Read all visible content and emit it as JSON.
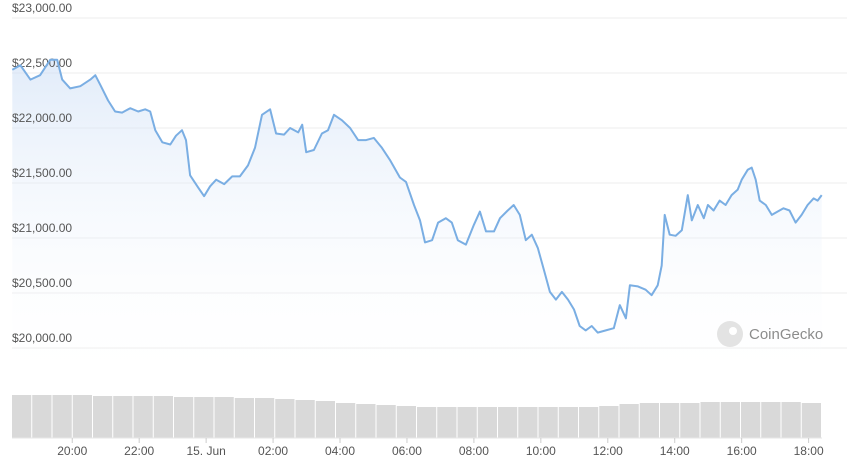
{
  "chart_data": {
    "type": "line",
    "watermark": "CoinGecko",
    "color": "#7aaee3",
    "grid": true,
    "x": [
      18.21,
      18.45,
      18.75,
      19.04,
      19.34,
      19.55,
      19.7,
      19.94,
      20.24,
      20.54,
      20.69,
      20.84,
      21.07,
      21.28,
      21.49,
      21.73,
      21.97,
      22.18,
      22.33,
      22.48,
      22.69,
      22.93,
      23.1,
      23.28,
      23.4,
      23.52,
      23.76,
      23.94,
      24.12,
      24.3,
      24.54,
      24.78,
      25.01,
      25.25,
      25.46,
      25.67,
      25.91,
      26.09,
      26.33,
      26.51,
      26.75,
      26.87,
      26.99,
      27.22,
      27.46,
      27.64,
      27.82,
      28.06,
      28.3,
      28.54,
      28.78,
      29.01,
      29.25,
      29.49,
      29.79,
      29.97,
      30.21,
      30.39,
      30.54,
      30.75,
      30.93,
      31.16,
      31.34,
      31.52,
      31.76,
      32.0,
      32.18,
      32.36,
      32.6,
      32.78,
      33.01,
      33.19,
      33.37,
      33.55,
      33.73,
      33.91,
      34.09,
      34.27,
      34.45,
      34.63,
      34.81,
      34.99,
      35.16,
      35.34,
      35.52,
      35.7,
      35.94,
      36.18,
      36.36,
      36.54,
      36.66,
      36.9,
      37.13,
      37.31,
      37.49,
      37.61,
      37.7,
      37.85,
      38.03,
      38.21,
      38.39,
      38.51,
      38.69,
      38.87,
      38.99,
      39.16,
      39.34,
      39.52,
      39.7,
      39.88,
      40.0,
      40.18,
      40.3,
      40.42,
      40.54,
      40.72,
      40.9,
      41.07,
      41.25,
      41.43,
      41.61,
      41.79,
      41.97,
      42.15,
      42.27,
      42.39
    ],
    "values": [
      22530,
      22570,
      22440,
      22480,
      22620,
      22620,
      22440,
      22360,
      22380,
      22440,
      22480,
      22390,
      22250,
      22150,
      22140,
      22180,
      22150,
      22170,
      22150,
      21980,
      21870,
      21850,
      21930,
      21980,
      21890,
      21570,
      21460,
      21380,
      21470,
      21530,
      21490,
      21560,
      21560,
      21660,
      21820,
      22120,
      22170,
      21950,
      21940,
      22000,
      21960,
      22030,
      21780,
      21800,
      21950,
      21980,
      22120,
      22070,
      22000,
      21890,
      21890,
      21910,
      21820,
      21710,
      21550,
      21510,
      21300,
      21160,
      20960,
      20980,
      21140,
      21180,
      21140,
      20980,
      20940,
      21120,
      21240,
      21060,
      21060,
      21180,
      21250,
      21300,
      21210,
      20980,
      21030,
      20910,
      20710,
      20510,
      20440,
      20510,
      20440,
      20350,
      20200,
      20160,
      20200,
      20140,
      20160,
      20180,
      20390,
      20270,
      20570,
      20560,
      20530,
      20480,
      20570,
      20750,
      21210,
      21030,
      21020,
      21070,
      21390,
      21160,
      21300,
      21180,
      21300,
      21250,
      21340,
      21300,
      21390,
      21440,
      21530,
      21620,
      21640,
      21530,
      21340,
      21300,
      21210,
      21240,
      21270,
      21250,
      21140,
      21210,
      21300,
      21360,
      21340,
      21390
    ],
    "xlim": [
      18.2,
      42.4
    ],
    "ylim": [
      19700,
      23000
    ],
    "yticks": [
      {
        "value": 20000,
        "label": "$20,000.00"
      },
      {
        "value": 20500,
        "label": "$20,500.00"
      },
      {
        "value": 21000,
        "label": "$21,000.00"
      },
      {
        "value": 21500,
        "label": "$21,500.00"
      },
      {
        "value": 22000,
        "label": "$22,000.00"
      },
      {
        "value": 22500,
        "label": "$22,500.00"
      },
      {
        "value": 23000,
        "label": "$23,000.00"
      }
    ],
    "xticks": [
      {
        "value": 20,
        "label": "20:00"
      },
      {
        "value": 22,
        "label": "22:00"
      },
      {
        "value": 24,
        "label": "15. Jun"
      },
      {
        "value": 26,
        "label": "02:00"
      },
      {
        "value": 28,
        "label": "04:00"
      },
      {
        "value": 30,
        "label": "06:00"
      },
      {
        "value": 32,
        "label": "08:00"
      },
      {
        "value": 34,
        "label": "10:00"
      },
      {
        "value": 36,
        "label": "12:00"
      },
      {
        "value": 38,
        "label": "14:00"
      },
      {
        "value": 40,
        "label": "16:00"
      },
      {
        "value": 42,
        "label": "18:00"
      }
    ],
    "volume": {
      "color": "#d9d9d9",
      "ylim": [
        0,
        43
      ],
      "values": [
        43,
        43,
        43,
        43,
        42,
        42,
        42,
        42,
        41,
        41,
        41,
        40,
        40,
        39,
        38,
        37,
        35,
        34,
        33,
        32,
        31,
        31,
        31,
        31,
        31,
        31,
        31,
        31,
        31,
        32,
        34,
        35,
        35,
        35,
        36,
        36,
        36,
        36,
        36,
        35
      ]
    }
  }
}
